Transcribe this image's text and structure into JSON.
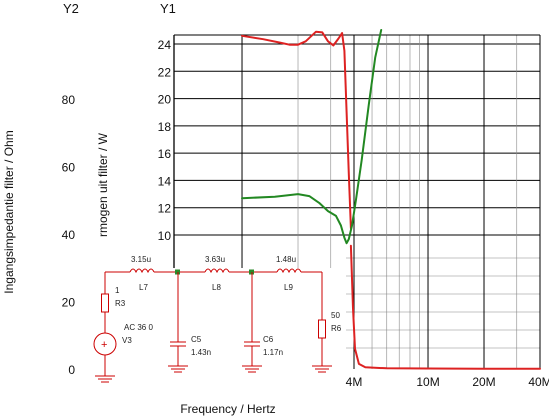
{
  "chart_data": {
    "type": "line",
    "xlabel": "Frequency / Hertz",
    "x_scale": "log",
    "x_ticks": [
      {
        "value": 4000000,
        "label": "4M"
      },
      {
        "value": 10000000,
        "label": "10M"
      },
      {
        "value": 20000000,
        "label": "20M"
      },
      {
        "value": 40000000,
        "label": "40M"
      }
    ],
    "y1": {
      "header": "Y1",
      "label": "rmogen uit filter / W",
      "ylim": [
        8.5,
        25
      ],
      "ticks": [
        10,
        12,
        14,
        16,
        18,
        20,
        22,
        24
      ]
    },
    "y2": {
      "header": "Y2",
      "label": "Ingangsimpedantie filter / Ohm",
      "ylim": [
        0,
        100
      ],
      "ticks": [
        0,
        20,
        40,
        60,
        80
      ]
    },
    "grid": true,
    "series": [
      {
        "axis": "y1",
        "color": "#dd2222",
        "points": [
          [
            1000000,
            24.6
          ],
          [
            1300000,
            24.35
          ],
          [
            1600000,
            24.1
          ],
          [
            1800000,
            23.95
          ],
          [
            2000000,
            23.95
          ],
          [
            2200000,
            24.2
          ],
          [
            2500000,
            24.9
          ],
          [
            2700000,
            24.85
          ],
          [
            2900000,
            24.2
          ],
          [
            3100000,
            23.9
          ],
          [
            3300000,
            24.4
          ],
          [
            3450000,
            24.8
          ],
          [
            3550000,
            23.5
          ],
          [
            3650000,
            19.0
          ],
          [
            3750000,
            14.5
          ],
          [
            3850000,
            10.5
          ]
        ]
      },
      {
        "axis": "y2",
        "color": "#dd2222",
        "points": [
          [
            3850000,
            36.5
          ],
          [
            3950000,
            18.0
          ],
          [
            4050000,
            6.0
          ],
          [
            4250000,
            1.5
          ],
          [
            4600000,
            0.5
          ],
          [
            6000000,
            0.2
          ],
          [
            10000000,
            0.15
          ],
          [
            20000000,
            0.1
          ],
          [
            40000000,
            0.1
          ]
        ]
      },
      {
        "axis": "y1",
        "color": "#228822",
        "points": [
          [
            1000000,
            12.7
          ],
          [
            1500000,
            12.8
          ],
          [
            2000000,
            13.0
          ],
          [
            2300000,
            12.85
          ],
          [
            2600000,
            12.35
          ],
          [
            2900000,
            11.75
          ],
          [
            3200000,
            11.4
          ],
          [
            3400000,
            10.7
          ],
          [
            3550000,
            9.8
          ],
          [
            3650000,
            9.4
          ],
          [
            3750000,
            9.7
          ],
          [
            3900000,
            10.7
          ],
          [
            4100000,
            12.6
          ],
          [
            4400000,
            15.5
          ],
          [
            4800000,
            19.5
          ],
          [
            5200000,
            23.0
          ],
          [
            5600000,
            25.8
          ]
        ]
      }
    ]
  },
  "schematic": {
    "inductors": [
      {
        "value": "3.15u",
        "name": "L7"
      },
      {
        "value": "3.63u",
        "name": "L8"
      },
      {
        "value": "1.48u",
        "name": "L9"
      }
    ],
    "capacitors": [
      {
        "name": "C5",
        "value": "1.43n"
      },
      {
        "name": "C6",
        "value": "1.17n"
      }
    ],
    "r3": {
      "value": "1",
      "name": "R3"
    },
    "r6": {
      "value": "50",
      "name": "R6"
    },
    "source": {
      "value": "AC 36 0",
      "name": "V3"
    }
  }
}
